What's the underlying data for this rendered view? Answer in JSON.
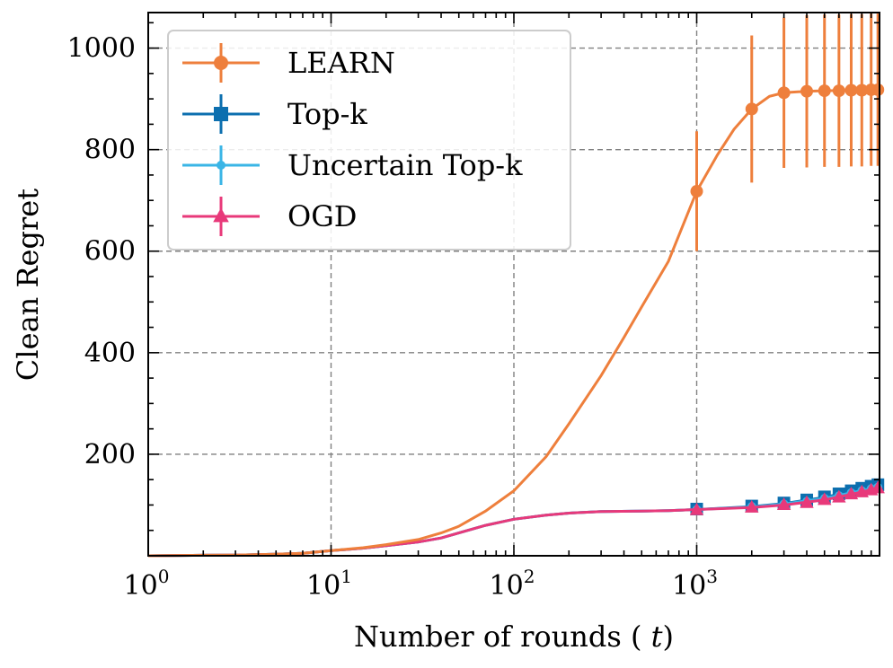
{
  "chart_data": {
    "type": "line",
    "xscale": "log",
    "xlim": [
      1,
      10000
    ],
    "ylim": [
      0,
      1070
    ],
    "xlabel": "Number of rounds (t)",
    "ylabel": "Clean Regret",
    "x_ticks": [
      {
        "base": "10",
        "exp": "0",
        "value": 1
      },
      {
        "base": "10",
        "exp": "1",
        "value": 10
      },
      {
        "base": "10",
        "exp": "2",
        "value": 100
      },
      {
        "base": "10",
        "exp": "3",
        "value": 1000
      }
    ],
    "y_ticks": [
      200,
      400,
      600,
      800,
      1000
    ],
    "y_tick_labels": [
      "200",
      "400",
      "600",
      "800",
      "1000"
    ],
    "grid": true,
    "legend_position": "top-left",
    "series": [
      {
        "name": "LEARN",
        "color": "#EE7F3C",
        "marker": "circle",
        "curve_x": [
          1,
          2,
          3,
          5,
          7,
          10,
          15,
          20,
          30,
          40,
          50,
          70,
          100,
          150,
          200,
          300,
          400,
          500,
          700,
          1000,
          1300,
          1600,
          2000,
          2500,
          3000,
          4000,
          5000,
          7000,
          9000,
          9500
        ],
        "curve_y": [
          0,
          1,
          1.5,
          3,
          5,
          10,
          16,
          22,
          32,
          45,
          58,
          88,
          128,
          195,
          260,
          355,
          430,
          490,
          580,
          718,
          790,
          840,
          880,
          905,
          912,
          915,
          916,
          917,
          918,
          918
        ],
        "marker_x": [
          1000,
          2000,
          3000,
          4000,
          5000,
          6000,
          7000,
          8000,
          9000,
          9800
        ],
        "marker_y": [
          718,
          880,
          912,
          915,
          916,
          916,
          917,
          917,
          918,
          918
        ],
        "err": [
          118,
          145,
          148,
          150,
          150,
          150,
          150,
          150,
          150,
          150
        ]
      },
      {
        "name": "Top-k",
        "color": "#0C6FAF",
        "marker": "square",
        "curve_x": [
          1,
          2,
          3,
          5,
          7,
          10,
          15,
          20,
          30,
          40,
          50,
          70,
          100,
          150,
          200,
          300,
          500,
          700,
          1000,
          2000,
          3000,
          5000,
          7000,
          9500
        ],
        "curve_y": [
          0,
          1,
          1.5,
          3,
          5,
          10,
          15,
          20,
          27,
          35,
          45,
          60,
          72,
          80,
          84,
          87,
          88,
          89,
          91,
          97,
          103,
          115,
          127,
          138
        ],
        "marker_x": [
          1000,
          2000,
          3000,
          4000,
          5000,
          6000,
          7000,
          8000,
          9000,
          9800
        ],
        "marker_y": [
          92,
          98,
          104,
          110,
          116,
          122,
          128,
          133,
          137,
          140
        ],
        "err": [
          4,
          5,
          6,
          6,
          7,
          7,
          8,
          8,
          9,
          9
        ]
      },
      {
        "name": "Uncertain Top-k",
        "color": "#3AB5E6",
        "marker": "circle",
        "curve_x": [
          1,
          2,
          3,
          5,
          7,
          10,
          15,
          20,
          30,
          40,
          50,
          70,
          100,
          150,
          200,
          300,
          500,
          700,
          1000,
          2000,
          3000,
          5000,
          7000,
          9500
        ],
        "curve_y": [
          0,
          1,
          1.5,
          3,
          5,
          10,
          15,
          20,
          27,
          35,
          45,
          60,
          72,
          80,
          84,
          87,
          88,
          89,
          91,
          96,
          102,
          113,
          124,
          134
        ],
        "marker_x": [
          1000,
          2000,
          3000,
          4000,
          5000,
          6000,
          7000,
          8000,
          9000,
          9800
        ],
        "marker_y": [
          91,
          97,
          102,
          107,
          113,
          118,
          124,
          128,
          132,
          135
        ],
        "err": [
          4,
          5,
          6,
          6,
          7,
          7,
          8,
          8,
          9,
          9
        ]
      },
      {
        "name": "OGD",
        "color": "#E8397A",
        "marker": "triangle",
        "curve_x": [
          1,
          2,
          3,
          5,
          7,
          10,
          15,
          20,
          30,
          40,
          50,
          70,
          100,
          150,
          200,
          300,
          500,
          700,
          1000,
          2000,
          3000,
          5000,
          7000,
          9500
        ],
        "curve_y": [
          0,
          1,
          1.5,
          3,
          5,
          10,
          15,
          20,
          27,
          35,
          45,
          60,
          72,
          80,
          84,
          87,
          88,
          89,
          91,
          95,
          100,
          110,
          121,
          132
        ],
        "marker_x": [
          1000,
          2000,
          3000,
          4000,
          5000,
          6000,
          7000,
          8000,
          9000,
          9800
        ],
        "marker_y": [
          90,
          95,
          100,
          104,
          110,
          115,
          121,
          125,
          129,
          133
        ],
        "err": [
          4,
          5,
          6,
          6,
          7,
          7,
          8,
          8,
          9,
          9
        ]
      }
    ]
  }
}
